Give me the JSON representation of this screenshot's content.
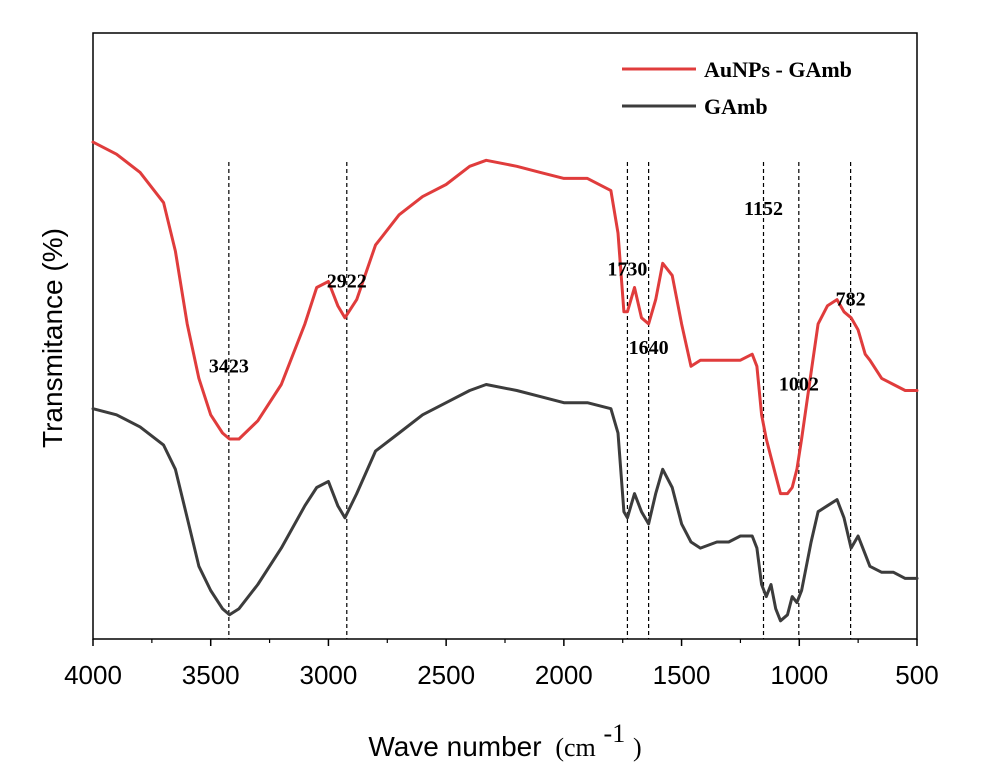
{
  "chart_data": {
    "type": "line",
    "xlabel": "Wave number",
    "xlabel_unit_base": "(cm",
    "xlabel_unit_sup": "-1",
    "xlabel_unit_close": ")",
    "ylabel": "Transmitance (%)",
    "xlim": [
      4000,
      500
    ],
    "x_reversed": true,
    "y_ticks_shown": false,
    "x_ticks": [
      {
        "value": 4000,
        "label": "4000"
      },
      {
        "value": 3500,
        "label": "3500"
      },
      {
        "value": 3000,
        "label": "3000"
      },
      {
        "value": 2500,
        "label": "2500"
      },
      {
        "value": 2000,
        "label": "2000"
      },
      {
        "value": 1500,
        "label": "1500"
      },
      {
        "value": 1000,
        "label": "1000"
      },
      {
        "value": 500,
        "label": "500"
      }
    ],
    "legend_position": "top-right",
    "series": [
      {
        "name": "AuNPs - GAmb",
        "color": "#e03c3c",
        "points": [
          [
            4000,
            0.82
          ],
          [
            3900,
            0.8
          ],
          [
            3800,
            0.77
          ],
          [
            3700,
            0.72
          ],
          [
            3650,
            0.64
          ],
          [
            3600,
            0.52
          ],
          [
            3550,
            0.43
          ],
          [
            3500,
            0.37
          ],
          [
            3450,
            0.34
          ],
          [
            3420,
            0.33
          ],
          [
            3380,
            0.33
          ],
          [
            3300,
            0.36
          ],
          [
            3200,
            0.42
          ],
          [
            3100,
            0.52
          ],
          [
            3050,
            0.58
          ],
          [
            3000,
            0.59
          ],
          [
            2960,
            0.55
          ],
          [
            2930,
            0.53
          ],
          [
            2880,
            0.56
          ],
          [
            2800,
            0.65
          ],
          [
            2700,
            0.7
          ],
          [
            2600,
            0.73
          ],
          [
            2500,
            0.75
          ],
          [
            2400,
            0.78
          ],
          [
            2330,
            0.79
          ],
          [
            2200,
            0.78
          ],
          [
            2100,
            0.77
          ],
          [
            2000,
            0.76
          ],
          [
            1900,
            0.76
          ],
          [
            1800,
            0.74
          ],
          [
            1770,
            0.67
          ],
          [
            1745,
            0.54
          ],
          [
            1730,
            0.54
          ],
          [
            1700,
            0.58
          ],
          [
            1670,
            0.53
          ],
          [
            1640,
            0.52
          ],
          [
            1610,
            0.56
          ],
          [
            1580,
            0.62
          ],
          [
            1540,
            0.6
          ],
          [
            1500,
            0.52
          ],
          [
            1460,
            0.45
          ],
          [
            1420,
            0.46
          ],
          [
            1350,
            0.46
          ],
          [
            1300,
            0.46
          ],
          [
            1250,
            0.46
          ],
          [
            1200,
            0.47
          ],
          [
            1180,
            0.45
          ],
          [
            1160,
            0.37
          ],
          [
            1140,
            0.33
          ],
          [
            1120,
            0.3
          ],
          [
            1100,
            0.27
          ],
          [
            1080,
            0.24
          ],
          [
            1050,
            0.24
          ],
          [
            1030,
            0.25
          ],
          [
            1010,
            0.28
          ],
          [
            990,
            0.33
          ],
          [
            950,
            0.44
          ],
          [
            920,
            0.52
          ],
          [
            880,
            0.55
          ],
          [
            840,
            0.56
          ],
          [
            810,
            0.54
          ],
          [
            780,
            0.53
          ],
          [
            750,
            0.51
          ],
          [
            720,
            0.47
          ],
          [
            700,
            0.46
          ],
          [
            650,
            0.43
          ],
          [
            600,
            0.42
          ],
          [
            550,
            0.41
          ],
          [
            500,
            0.41
          ]
        ]
      },
      {
        "name": "GAmb",
        "color": "#3c3c3c",
        "points": [
          [
            4000,
            0.38
          ],
          [
            3900,
            0.37
          ],
          [
            3800,
            0.35
          ],
          [
            3700,
            0.32
          ],
          [
            3650,
            0.28
          ],
          [
            3600,
            0.2
          ],
          [
            3550,
            0.12
          ],
          [
            3500,
            0.08
          ],
          [
            3450,
            0.05
          ],
          [
            3420,
            0.04
          ],
          [
            3380,
            0.05
          ],
          [
            3300,
            0.09
          ],
          [
            3200,
            0.15
          ],
          [
            3100,
            0.22
          ],
          [
            3050,
            0.25
          ],
          [
            3000,
            0.26
          ],
          [
            2960,
            0.22
          ],
          [
            2930,
            0.2
          ],
          [
            2880,
            0.24
          ],
          [
            2800,
            0.31
          ],
          [
            2700,
            0.34
          ],
          [
            2600,
            0.37
          ],
          [
            2500,
            0.39
          ],
          [
            2400,
            0.41
          ],
          [
            2330,
            0.42
          ],
          [
            2200,
            0.41
          ],
          [
            2100,
            0.4
          ],
          [
            2000,
            0.39
          ],
          [
            1900,
            0.39
          ],
          [
            1800,
            0.38
          ],
          [
            1770,
            0.34
          ],
          [
            1745,
            0.21
          ],
          [
            1730,
            0.2
          ],
          [
            1700,
            0.24
          ],
          [
            1670,
            0.21
          ],
          [
            1640,
            0.19
          ],
          [
            1610,
            0.24
          ],
          [
            1580,
            0.28
          ],
          [
            1540,
            0.25
          ],
          [
            1500,
            0.19
          ],
          [
            1460,
            0.16
          ],
          [
            1420,
            0.15
          ],
          [
            1350,
            0.16
          ],
          [
            1300,
            0.16
          ],
          [
            1250,
            0.17
          ],
          [
            1200,
            0.17
          ],
          [
            1180,
            0.15
          ],
          [
            1160,
            0.09
          ],
          [
            1140,
            0.07
          ],
          [
            1120,
            0.09
          ],
          [
            1100,
            0.05
          ],
          [
            1080,
            0.03
          ],
          [
            1050,
            0.04
          ],
          [
            1030,
            0.07
          ],
          [
            1010,
            0.06
          ],
          [
            990,
            0.08
          ],
          [
            950,
            0.16
          ],
          [
            920,
            0.21
          ],
          [
            880,
            0.22
          ],
          [
            840,
            0.23
          ],
          [
            810,
            0.2
          ],
          [
            780,
            0.15
          ],
          [
            750,
            0.17
          ],
          [
            720,
            0.14
          ],
          [
            700,
            0.12
          ],
          [
            650,
            0.11
          ],
          [
            600,
            0.11
          ],
          [
            550,
            0.1
          ],
          [
            500,
            0.1
          ]
        ]
      }
    ],
    "reference_lines": [
      {
        "x": 3423,
        "label": "3423",
        "label_y": 0.44
      },
      {
        "x": 2922,
        "label": "2922",
        "label_y": 0.58
      },
      {
        "x": 1730,
        "label": "1730",
        "label_y": 0.6
      },
      {
        "x": 1640,
        "label": "1640",
        "label_y": 0.47
      },
      {
        "x": 1152,
        "label": "1152",
        "label_y": 0.7
      },
      {
        "x": 1002,
        "label": "1002",
        "label_y": 0.41
      },
      {
        "x": 782,
        "label": "782",
        "label_y": 0.55
      }
    ]
  }
}
